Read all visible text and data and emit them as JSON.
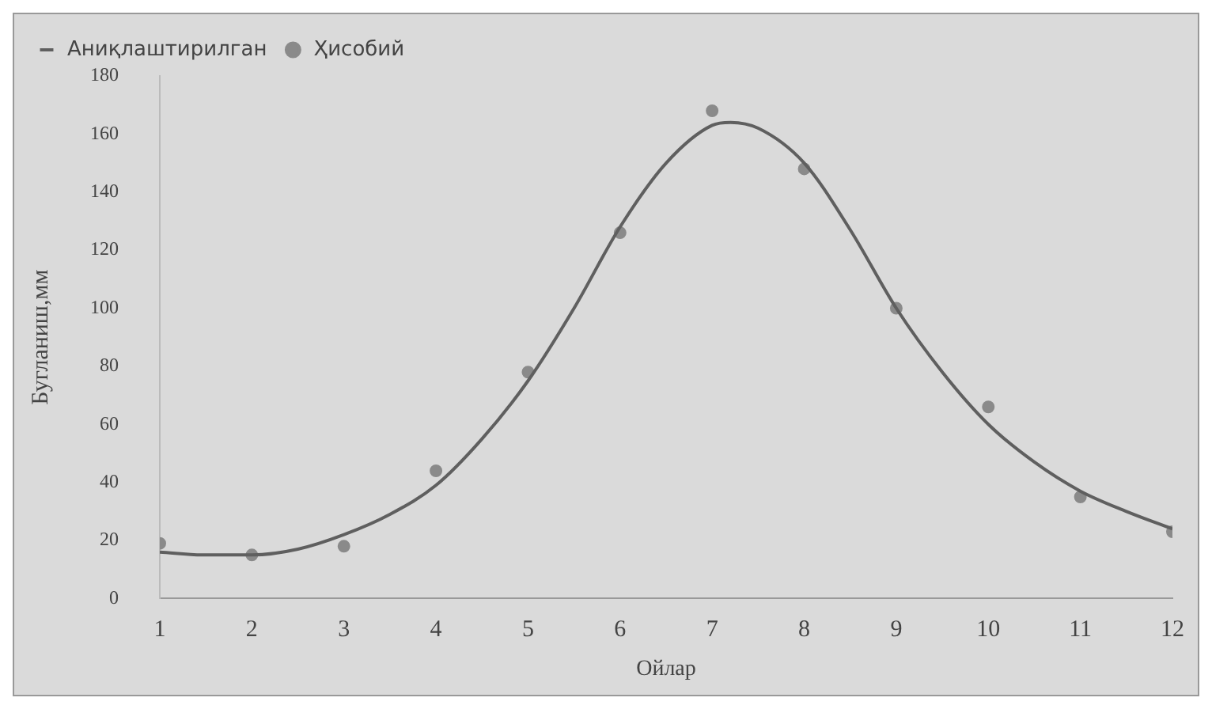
{
  "chart_data": {
    "type": "line",
    "xlabel": "Ойлар",
    "ylabel": "Бугланиш,мм",
    "xlim": [
      1,
      12
    ],
    "xticks": [
      1,
      2,
      3,
      4,
      5,
      6,
      7,
      8,
      9,
      10,
      11,
      12
    ],
    "ylim": [
      0,
      180
    ],
    "yticks": [
      0,
      20,
      40,
      60,
      80,
      100,
      120,
      140,
      160,
      180
    ],
    "grid": false,
    "legend": "top left",
    "series": [
      {
        "name": "Аниқлаштирилган",
        "marker": "none",
        "line_style": "solid",
        "color": "#5f5f5f",
        "x": [
          1,
          1.5,
          2,
          2.5,
          3,
          3.5,
          4,
          4.5,
          5,
          5.5,
          6,
          6.5,
          7,
          7.2,
          7.5,
          8,
          8.5,
          9,
          9.5,
          10,
          10.5,
          11,
          11.5,
          12
        ],
        "values": [
          16,
          15,
          15,
          17,
          22,
          29,
          39,
          55,
          75,
          100,
          128,
          150,
          163,
          164,
          162,
          150,
          127,
          100,
          78,
          60,
          47,
          37,
          30,
          24
        ]
      },
      {
        "name": "Ҳисобий",
        "type": "scatter",
        "marker": "circle",
        "color": "#8a8a8a",
        "x": [
          1,
          2,
          3,
          4,
          5,
          6,
          7,
          8,
          9,
          10,
          11,
          12
        ],
        "values": [
          19,
          15,
          18,
          44,
          78,
          126,
          168,
          148,
          100,
          66,
          35,
          23
        ]
      }
    ]
  }
}
